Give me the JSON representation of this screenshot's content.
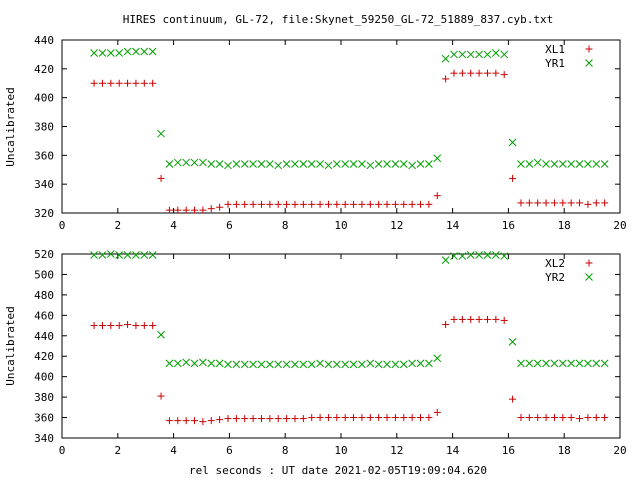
{
  "title": "HIRES continuum, GL-72, file:Skynet_59250_GL-72_51889_837.cyb.txt",
  "xlabel": "rel seconds : UT date 2021-02-05T19:09:04.620",
  "colors": {
    "series1": "#cc0000",
    "series2": "#00a000",
    "axes": "#000000"
  },
  "chart_data": [
    {
      "type": "scatter",
      "title": "HIRES continuum, GL-72, file:Skynet_59250_GL-72_51889_837.cyb.txt",
      "xlabel": "",
      "ylabel": "Uncalibrated",
      "xlim": [
        0,
        20
      ],
      "ylim": [
        320,
        440
      ],
      "xticks": [
        0,
        2,
        4,
        6,
        8,
        10,
        12,
        14,
        16,
        18,
        20
      ],
      "yticks": [
        320,
        340,
        360,
        380,
        400,
        420,
        440
      ],
      "grid": false,
      "legend_position": "top-right",
      "series": [
        {
          "name": "XL1",
          "marker": "plus",
          "x": [
            1.15,
            1.45,
            1.75,
            2.05,
            2.35,
            2.65,
            2.95,
            3.25,
            3.55,
            3.85,
            4.15,
            4.45,
            4.75,
            5.05,
            5.35,
            5.65,
            5.95,
            6.25,
            6.55,
            6.85,
            7.15,
            7.45,
            7.75,
            8.05,
            8.35,
            8.65,
            8.95,
            9.25,
            9.55,
            9.85,
            10.15,
            10.45,
            10.75,
            11.05,
            11.35,
            11.65,
            11.95,
            12.25,
            12.55,
            12.85,
            13.15,
            13.45,
            13.75,
            14.05,
            14.35,
            14.65,
            14.95,
            15.25,
            15.55,
            15.85,
            16.15,
            16.45,
            16.75,
            17.05,
            17.35,
            17.65,
            17.95,
            18.25,
            18.55,
            18.85,
            19.15,
            19.45
          ],
          "y": [
            410,
            410,
            410,
            410,
            410,
            410,
            410,
            410,
            344,
            322,
            322,
            322,
            322,
            322,
            323,
            324,
            326,
            326,
            326,
            326,
            326,
            326,
            326,
            326,
            326,
            326,
            326,
            326,
            326,
            326,
            326,
            326,
            326,
            326,
            326,
            326,
            326,
            326,
            326,
            326,
            326,
            332,
            413,
            417,
            417,
            417,
            417,
            417,
            417,
            416,
            344,
            327,
            327,
            327,
            327,
            327,
            327,
            327,
            327,
            326,
            327,
            327
          ]
        },
        {
          "name": "YR1",
          "marker": "cross",
          "x": [
            1.15,
            1.45,
            1.75,
            2.05,
            2.35,
            2.65,
            2.95,
            3.25,
            3.55,
            3.85,
            4.15,
            4.45,
            4.75,
            5.05,
            5.35,
            5.65,
            5.95,
            6.25,
            6.55,
            6.85,
            7.15,
            7.45,
            7.75,
            8.05,
            8.35,
            8.65,
            8.95,
            9.25,
            9.55,
            9.85,
            10.15,
            10.45,
            10.75,
            11.05,
            11.35,
            11.65,
            11.95,
            12.25,
            12.55,
            12.85,
            13.15,
            13.45,
            13.75,
            14.05,
            14.35,
            14.65,
            14.95,
            15.25,
            15.55,
            15.85,
            16.15,
            16.45,
            16.75,
            17.05,
            17.35,
            17.65,
            17.95,
            18.25,
            18.55,
            18.85,
            19.15,
            19.45
          ],
          "y": [
            431,
            431,
            431,
            431,
            432,
            432,
            432,
            432,
            375,
            354,
            355,
            355,
            355,
            355,
            354,
            354,
            353,
            354,
            354,
            354,
            354,
            354,
            353,
            354,
            354,
            354,
            354,
            354,
            353,
            354,
            354,
            354,
            354,
            353,
            354,
            354,
            354,
            354,
            353,
            354,
            354,
            358,
            427,
            430,
            430,
            430,
            430,
            430,
            431,
            430,
            369,
            354,
            354,
            355,
            354,
            354,
            354,
            354,
            354,
            354,
            354,
            354
          ]
        }
      ]
    },
    {
      "type": "scatter",
      "title": "",
      "xlabel": "rel seconds : UT date 2021-02-05T19:09:04.620",
      "ylabel": "Uncalibrated",
      "xlim": [
        0,
        20
      ],
      "ylim": [
        340,
        520
      ],
      "xticks": [
        0,
        2,
        4,
        6,
        8,
        10,
        12,
        14,
        16,
        18,
        20
      ],
      "yticks": [
        340,
        360,
        380,
        400,
        420,
        440,
        460,
        480,
        500,
        520
      ],
      "grid": false,
      "legend_position": "top-right",
      "series": [
        {
          "name": "XL2",
          "marker": "plus",
          "x": [
            1.15,
            1.45,
            1.75,
            2.05,
            2.35,
            2.65,
            2.95,
            3.25,
            3.55,
            3.85,
            4.15,
            4.45,
            4.75,
            5.05,
            5.35,
            5.65,
            5.95,
            6.25,
            6.55,
            6.85,
            7.15,
            7.45,
            7.75,
            8.05,
            8.35,
            8.65,
            8.95,
            9.25,
            9.55,
            9.85,
            10.15,
            10.45,
            10.75,
            11.05,
            11.35,
            11.65,
            11.95,
            12.25,
            12.55,
            12.85,
            13.15,
            13.45,
            13.75,
            14.05,
            14.35,
            14.65,
            14.95,
            15.25,
            15.55,
            15.85,
            16.15,
            16.45,
            16.75,
            17.05,
            17.35,
            17.65,
            17.95,
            18.25,
            18.55,
            18.85,
            19.15,
            19.45
          ],
          "y": [
            450,
            450,
            450,
            450,
            451,
            450,
            450,
            450,
            381,
            357,
            357,
            357,
            357,
            356,
            357,
            358,
            359,
            359,
            359,
            359,
            359,
            359,
            359,
            359,
            359,
            359,
            360,
            360,
            360,
            360,
            360,
            360,
            360,
            360,
            360,
            360,
            360,
            360,
            360,
            360,
            360,
            365,
            451,
            456,
            456,
            456,
            456,
            456,
            456,
            455,
            378,
            360,
            360,
            360,
            360,
            360,
            360,
            360,
            359,
            360,
            360,
            360
          ]
        },
        {
          "name": "YR2",
          "marker": "cross",
          "x": [
            1.15,
            1.45,
            1.75,
            2.05,
            2.35,
            2.65,
            2.95,
            3.25,
            3.55,
            3.85,
            4.15,
            4.45,
            4.75,
            5.05,
            5.35,
            5.65,
            5.95,
            6.25,
            6.55,
            6.85,
            7.15,
            7.45,
            7.75,
            8.05,
            8.35,
            8.65,
            8.95,
            9.25,
            9.55,
            9.85,
            10.15,
            10.45,
            10.75,
            11.05,
            11.35,
            11.65,
            11.95,
            12.25,
            12.55,
            12.85,
            13.15,
            13.45,
            13.75,
            14.05,
            14.35,
            14.65,
            14.95,
            15.25,
            15.55,
            15.85,
            16.15,
            16.45,
            16.75,
            17.05,
            17.35,
            17.65,
            17.95,
            18.25,
            18.55,
            18.85,
            19.15,
            19.45
          ],
          "y": [
            519,
            519,
            520,
            519,
            519,
            519,
            519,
            519,
            441,
            413,
            413,
            414,
            413,
            414,
            413,
            413,
            412,
            412,
            412,
            412,
            412,
            412,
            412,
            412,
            412,
            412,
            412,
            413,
            412,
            412,
            412,
            412,
            412,
            413,
            412,
            412,
            412,
            412,
            413,
            413,
            413,
            418,
            514,
            518,
            518,
            519,
            519,
            519,
            519,
            518,
            434,
            413,
            413,
            413,
            413,
            413,
            413,
            413,
            413,
            413,
            413,
            413
          ]
        }
      ]
    }
  ]
}
